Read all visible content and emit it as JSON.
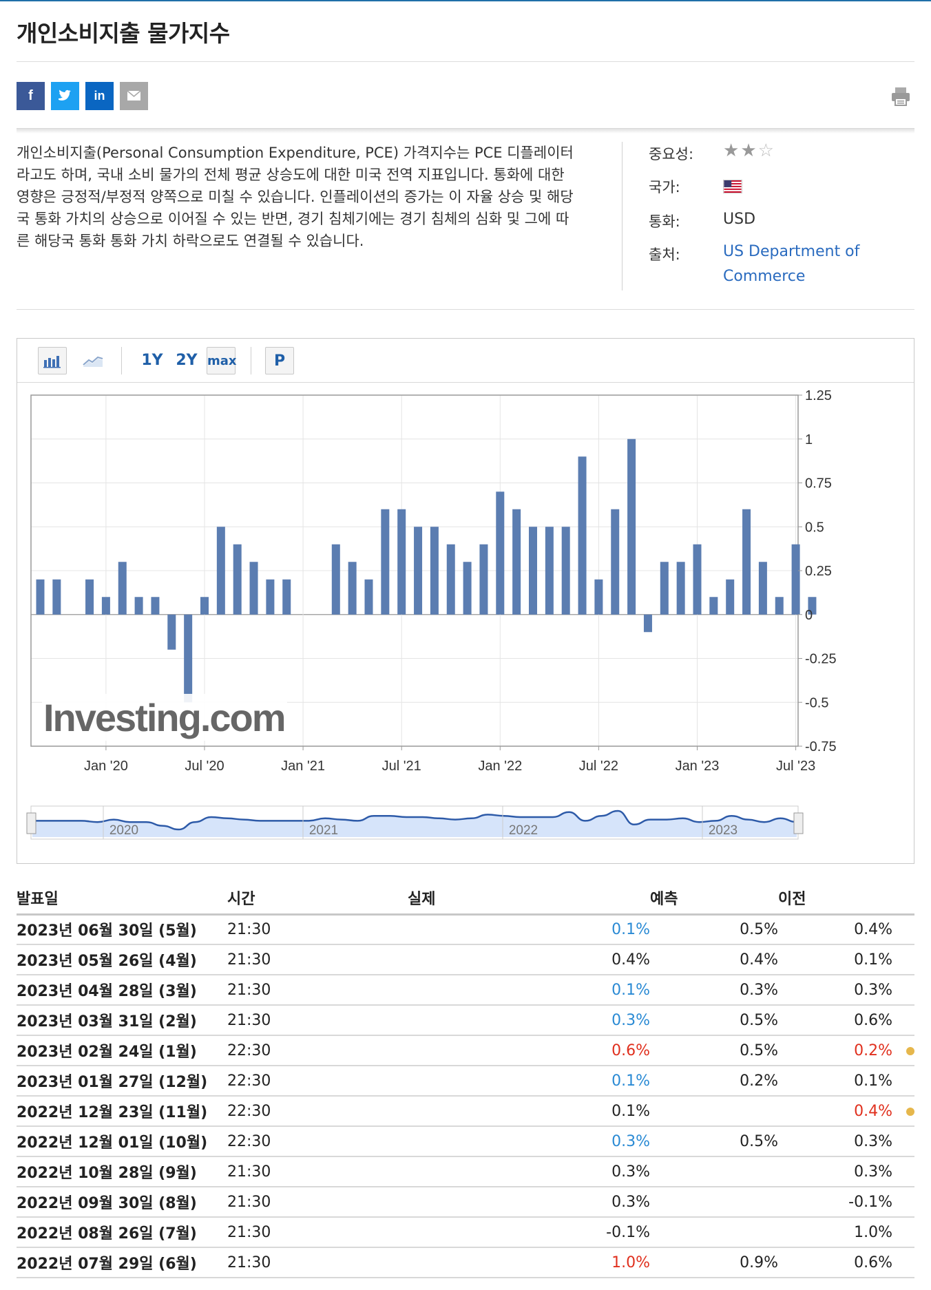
{
  "page": {
    "title": "개인소비지출 물가지수"
  },
  "share": {
    "facebook": "f",
    "linkedin": "in"
  },
  "description": "개인소비지출(Personal Consumption Expenditure, PCE) 가격지수는 PCE 디플레이터라고도 하며, 국내 소비 물가의 전체 평균 상승도에 대한 미국 전역 지표입니다. 통화에 대한 영향은 긍정적/부정적 양쪽으로 미칠 수 있습니다. 인플레이션의 증가는 이 자율 상승 및 해당국 통화 가치의 상승으로 이어질 수 있는 반면, 경기 침체기에는 경기 침체의 심화 및 그에 따른 해당국 통화 통화 가치 하락으로도 연결될 수 있습니다.",
  "info": {
    "importance_label": "중요성:",
    "importance_stars": 2,
    "importance_max": 3,
    "country_label": "국가:",
    "currency_label": "통화:",
    "currency_value": "USD",
    "source_label": "출처:",
    "source_line1": "US Department of",
    "source_line2": "Commerce"
  },
  "toolbar": {
    "range_1y": "1Y",
    "range_2y": "2Y",
    "range_max": "max",
    "p": "P"
  },
  "chart_data": {
    "type": "bar",
    "title": "",
    "xlabel": "",
    "ylabel": "",
    "ylim": [
      -0.75,
      1.25
    ],
    "yticks": [
      "1.25",
      "1",
      "0.75",
      "0.5",
      "0.25",
      "0",
      "-0.25",
      "-0.5",
      "-0.75"
    ],
    "x_tick_labels": [
      "Jan '20",
      "Jul '20",
      "Jan '21",
      "Jul '21",
      "Jan '22",
      "Jul '22",
      "Jan '23",
      "Jul '23"
    ],
    "values": [
      0.2,
      0.2,
      null,
      0.2,
      0.1,
      0.3,
      0.1,
      0.1,
      -0.2,
      -0.5,
      0.1,
      0.5,
      0.4,
      0.3,
      0.2,
      0.2,
      null,
      null,
      0.4,
      0.3,
      0.2,
      0.6,
      0.6,
      0.5,
      0.5,
      0.4,
      0.3,
      0.4,
      0.7,
      0.6,
      0.5,
      0.5,
      0.5,
      0.9,
      0.2,
      0.6,
      1.0,
      -0.1,
      0.3,
      0.3,
      0.4,
      0.1,
      0.2,
      0.6,
      0.3,
      0.1,
      0.4,
      0.1
    ],
    "watermark": "Investing.com",
    "navigator_years": [
      "2020",
      "2021",
      "2022",
      "2023"
    ]
  },
  "table": {
    "headers": {
      "date": "발표일",
      "time": "시간",
      "actual": "실제",
      "forecast": "예측",
      "previous": "이전"
    },
    "rows": [
      {
        "date": "2023년 06월 30일 (5월)",
        "time": "21:30",
        "actual": "0.1%",
        "forecast": "0.5%",
        "previous": "0.4%",
        "actual_color": "blue",
        "prev_color": "",
        "dot": false
      },
      {
        "date": "2023년 05월 26일 (4월)",
        "time": "21:30",
        "actual": "0.4%",
        "forecast": "0.4%",
        "previous": "0.1%",
        "actual_color": "",
        "prev_color": "",
        "dot": false
      },
      {
        "date": "2023년 04월 28일 (3월)",
        "time": "21:30",
        "actual": "0.1%",
        "forecast": "0.3%",
        "previous": "0.3%",
        "actual_color": "blue",
        "prev_color": "",
        "dot": false
      },
      {
        "date": "2023년 03월 31일 (2월)",
        "time": "21:30",
        "actual": "0.3%",
        "forecast": "0.5%",
        "previous": "0.6%",
        "actual_color": "blue",
        "prev_color": "",
        "dot": false
      },
      {
        "date": "2023년 02월 24일 (1월)",
        "time": "22:30",
        "actual": "0.6%",
        "forecast": "0.5%",
        "previous": "0.2%",
        "actual_color": "red",
        "prev_color": "red",
        "dot": true
      },
      {
        "date": "2023년 01월 27일 (12월)",
        "time": "22:30",
        "actual": "0.1%",
        "forecast": "0.2%",
        "previous": "0.1%",
        "actual_color": "blue",
        "prev_color": "",
        "dot": false
      },
      {
        "date": "2022년 12월 23일 (11월)",
        "time": "22:30",
        "actual": "0.1%",
        "forecast": "",
        "previous": "0.4%",
        "actual_color": "",
        "prev_color": "red",
        "dot": true
      },
      {
        "date": "2022년 12월 01일 (10월)",
        "time": "22:30",
        "actual": "0.3%",
        "forecast": "0.5%",
        "previous": "0.3%",
        "actual_color": "blue",
        "prev_color": "",
        "dot": false
      },
      {
        "date": "2022년 10월 28일 (9월)",
        "time": "21:30",
        "actual": "0.3%",
        "forecast": "",
        "previous": "0.3%",
        "actual_color": "",
        "prev_color": "",
        "dot": false
      },
      {
        "date": "2022년 09월 30일 (8월)",
        "time": "21:30",
        "actual": "0.3%",
        "forecast": "",
        "previous": "-0.1%",
        "actual_color": "",
        "prev_color": "",
        "dot": false
      },
      {
        "date": "2022년 08월 26일 (7월)",
        "time": "21:30",
        "actual": "-0.1%",
        "forecast": "",
        "previous": "1.0%",
        "actual_color": "",
        "prev_color": "",
        "dot": false
      },
      {
        "date": "2022년 07월 29일 (6월)",
        "time": "21:30",
        "actual": "1.0%",
        "forecast": "0.9%",
        "previous": "0.6%",
        "actual_color": "red",
        "prev_color": "",
        "dot": false
      }
    ]
  }
}
